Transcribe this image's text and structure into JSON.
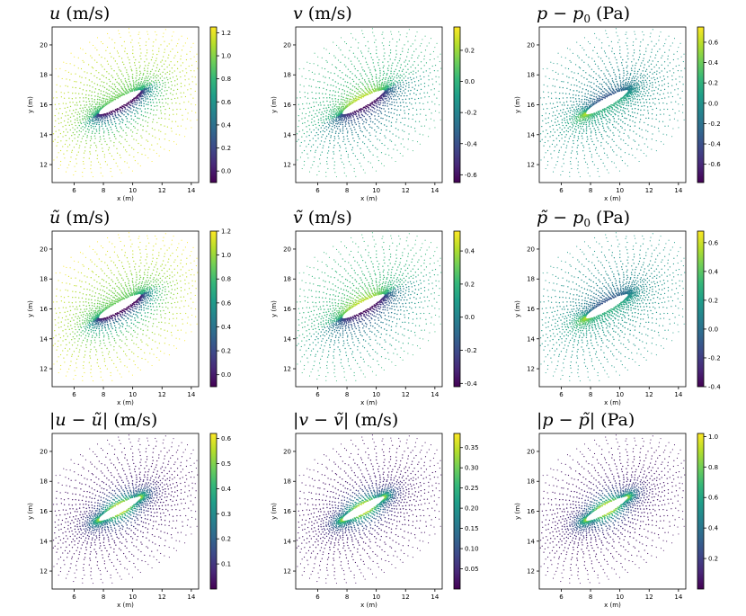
{
  "colors": {
    "viridis": [
      "#440154",
      "#482878",
      "#3e4989",
      "#31688e",
      "#26828e",
      "#1f9e89",
      "#35b779",
      "#6ece58",
      "#b5de2b",
      "#fde725"
    ],
    "axis": "#000000",
    "background": "#ffffff"
  },
  "chart_data": [
    {
      "type": "scatter",
      "id": "u",
      "title": {
        "base": "u",
        "tilde": false,
        "abs": false,
        "unit": "(m/s)"
      },
      "xlabel": "x (m)",
      "ylabel": "y (m)",
      "xlim": [
        4.5,
        14.5
      ],
      "ylim": [
        10.8,
        21.2
      ],
      "xticks": [
        6,
        8,
        10,
        12,
        14
      ],
      "yticks": [
        12,
        14,
        16,
        18,
        20
      ],
      "colorbar": {
        "min": -0.1,
        "max": 1.25,
        "ticks": [
          0.0,
          0.2,
          0.4,
          0.6,
          0.8,
          1.0,
          1.2
        ],
        "tick_labels": [
          "0.0",
          "0.2",
          "0.4",
          "0.6",
          "0.8",
          "1.0",
          "1.2"
        ]
      },
      "field": "u"
    },
    {
      "type": "scatter",
      "id": "v",
      "title": {
        "base": "v",
        "tilde": false,
        "abs": false,
        "unit": "(m/s)"
      },
      "xlabel": "x (m)",
      "ylabel": "y (m)",
      "xlim": [
        4.5,
        14.5
      ],
      "ylim": [
        10.8,
        21.2
      ],
      "xticks": [
        6,
        8,
        10,
        12,
        14
      ],
      "yticks": [
        12,
        14,
        16,
        18,
        20
      ],
      "colorbar": {
        "min": -0.65,
        "max": 0.35,
        "ticks": [
          -0.6,
          -0.4,
          -0.2,
          0.0,
          0.2
        ],
        "tick_labels": [
          "-0.6",
          "-0.4",
          "-0.2",
          "0.0",
          "0.2"
        ]
      },
      "field": "v"
    },
    {
      "type": "scatter",
      "id": "p",
      "title": {
        "base": "p − p",
        "sub": "0",
        "tilde": false,
        "abs": false,
        "unit": "(Pa)"
      },
      "xlabel": "x (m)",
      "ylabel": "y (m)",
      "xlim": [
        4.5,
        14.5
      ],
      "ylim": [
        10.8,
        21.2
      ],
      "xticks": [
        6,
        8,
        10,
        12,
        14
      ],
      "yticks": [
        12,
        14,
        16,
        18,
        20
      ],
      "colorbar": {
        "min": -0.78,
        "max": 0.75,
        "ticks": [
          -0.6,
          -0.4,
          -0.2,
          0.0,
          0.2,
          0.4,
          0.6
        ],
        "tick_labels": [
          "-0.6",
          "-0.4",
          "-0.2",
          "0.0",
          "0.2",
          "0.4",
          "0.6"
        ]
      },
      "field": "p"
    },
    {
      "type": "scatter",
      "id": "u_tilde",
      "title": {
        "base": "ũ",
        "tilde": true,
        "abs": false,
        "unit": "(m/s)"
      },
      "xlabel": "x (m)",
      "ylabel": "y (m)",
      "xlim": [
        4.5,
        14.5
      ],
      "ylim": [
        10.8,
        21.2
      ],
      "xticks": [
        6,
        8,
        10,
        12,
        14
      ],
      "yticks": [
        12,
        14,
        16,
        18,
        20
      ],
      "colorbar": {
        "min": -0.1,
        "max": 1.2,
        "ticks": [
          0.0,
          0.2,
          0.4,
          0.6,
          0.8,
          1.0,
          1.2
        ],
        "tick_labels": [
          "0.0",
          "0.2",
          "0.4",
          "0.6",
          "0.8",
          "1.0",
          "1.2"
        ]
      },
      "field": "u"
    },
    {
      "type": "scatter",
      "id": "v_tilde",
      "title": {
        "base": "ṽ",
        "tilde": true,
        "abs": false,
        "unit": "(m/s)"
      },
      "xlabel": "x (m)",
      "ylabel": "y (m)",
      "xlim": [
        4.5,
        14.5
      ],
      "ylim": [
        10.8,
        21.2
      ],
      "xticks": [
        6,
        8,
        10,
        12,
        14
      ],
      "yticks": [
        12,
        14,
        16,
        18,
        20
      ],
      "colorbar": {
        "min": -0.42,
        "max": 0.52,
        "ticks": [
          -0.4,
          -0.2,
          0.0,
          0.2,
          0.4
        ],
        "tick_labels": [
          "-0.4",
          "-0.2",
          "0.0",
          "0.2",
          "0.4"
        ]
      },
      "field": "v"
    },
    {
      "type": "scatter",
      "id": "p_tilde",
      "title": {
        "base": "p̃ − p",
        "sub": "0",
        "tilde": true,
        "abs": false,
        "unit": "(Pa)"
      },
      "xlabel": "x (m)",
      "ylabel": "y (m)",
      "xlim": [
        4.5,
        14.5
      ],
      "ylim": [
        10.8,
        21.2
      ],
      "xticks": [
        6,
        8,
        10,
        12,
        14
      ],
      "yticks": [
        12,
        14,
        16,
        18,
        20
      ],
      "colorbar": {
        "min": -0.4,
        "max": 0.68,
        "ticks": [
          -0.4,
          -0.2,
          0.0,
          0.2,
          0.4,
          0.6
        ],
        "tick_labels": [
          "-0.4",
          "-0.2",
          "0.0",
          "0.2",
          "0.4",
          "0.6"
        ]
      },
      "field": "p"
    },
    {
      "type": "scatter",
      "id": "err_u",
      "title": {
        "base": "|u − ũ|",
        "tilde": false,
        "abs": true,
        "unit": "(m/s)"
      },
      "xlabel": "x (m)",
      "ylabel": "y (m)",
      "xlim": [
        4.5,
        14.5
      ],
      "ylim": [
        10.8,
        21.2
      ],
      "xticks": [
        6,
        8,
        10,
        12,
        14
      ],
      "yticks": [
        12,
        14,
        16,
        18,
        20
      ],
      "colorbar": {
        "min": 0.0,
        "max": 0.62,
        "ticks": [
          0.1,
          0.2,
          0.3,
          0.4,
          0.5,
          0.6
        ],
        "tick_labels": [
          "0.1",
          "0.2",
          "0.3",
          "0.4",
          "0.5",
          "0.6"
        ]
      },
      "field": "err"
    },
    {
      "type": "scatter",
      "id": "err_v",
      "title": {
        "base": "|v − ṽ|",
        "tilde": false,
        "abs": true,
        "unit": "(m/s)"
      },
      "xlabel": "x (m)",
      "ylabel": "y (m)",
      "xlim": [
        4.5,
        14.5
      ],
      "ylim": [
        10.8,
        21.2
      ],
      "xticks": [
        6,
        8,
        10,
        12,
        14
      ],
      "yticks": [
        12,
        14,
        16,
        18,
        20
      ],
      "colorbar": {
        "min": 0.0,
        "max": 0.385,
        "ticks": [
          0.05,
          0.1,
          0.15,
          0.2,
          0.25,
          0.3,
          0.35
        ],
        "tick_labels": [
          "0.05",
          "0.10",
          "0.15",
          "0.20",
          "0.25",
          "0.30",
          "0.35"
        ]
      },
      "field": "err"
    },
    {
      "type": "scatter",
      "id": "err_p",
      "title": {
        "base": "|p − p̃|",
        "tilde": false,
        "abs": true,
        "unit": "(Pa)"
      },
      "xlabel": "x (m)",
      "ylabel": "y (m)",
      "xlim": [
        4.5,
        14.5
      ],
      "ylim": [
        10.8,
        21.2
      ],
      "xticks": [
        6,
        8,
        10,
        12,
        14
      ],
      "yticks": [
        12,
        14,
        16,
        18,
        20
      ],
      "colorbar": {
        "min": 0.0,
        "max": 1.02,
        "ticks": [
          0.2,
          0.4,
          0.6,
          0.8,
          1.0
        ],
        "tick_labels": [
          "0.2",
          "0.4",
          "0.6",
          "0.8",
          "1.0"
        ]
      },
      "field": "err"
    }
  ],
  "airfoil": {
    "leading_edge": [
      7.7,
      15.4
    ],
    "trailing_edge": [
      10.55,
      16.95
    ],
    "thickness": 0.55
  }
}
